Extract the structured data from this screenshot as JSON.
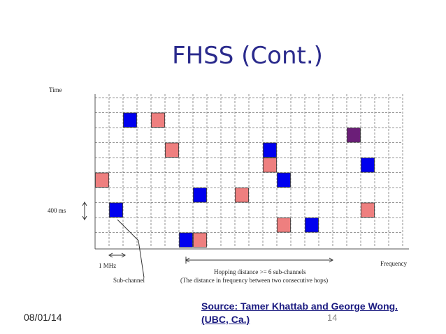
{
  "title": "FHSS (Cont.)",
  "axis": {
    "y_label": "Time",
    "x_label": "Frequency",
    "period_label": "400 ms",
    "bandwidth_label": "1 MHz",
    "subchannel_label": "Sub-channel"
  },
  "hop_annotation": {
    "line1": "Hopping distance >= 6 sub-channels",
    "line2": "(The distance in frequency between two consecutive hops)"
  },
  "footer": {
    "date": "08/01/14",
    "page": "14",
    "source_line1": "Source: Tamer Khattab and George Wong.",
    "source_line2": "(UBC, Ca.)"
  },
  "colors": {
    "blue": "#0000ee",
    "pink": "#ee7f7f",
    "purple": "#6b1e78"
  }
}
